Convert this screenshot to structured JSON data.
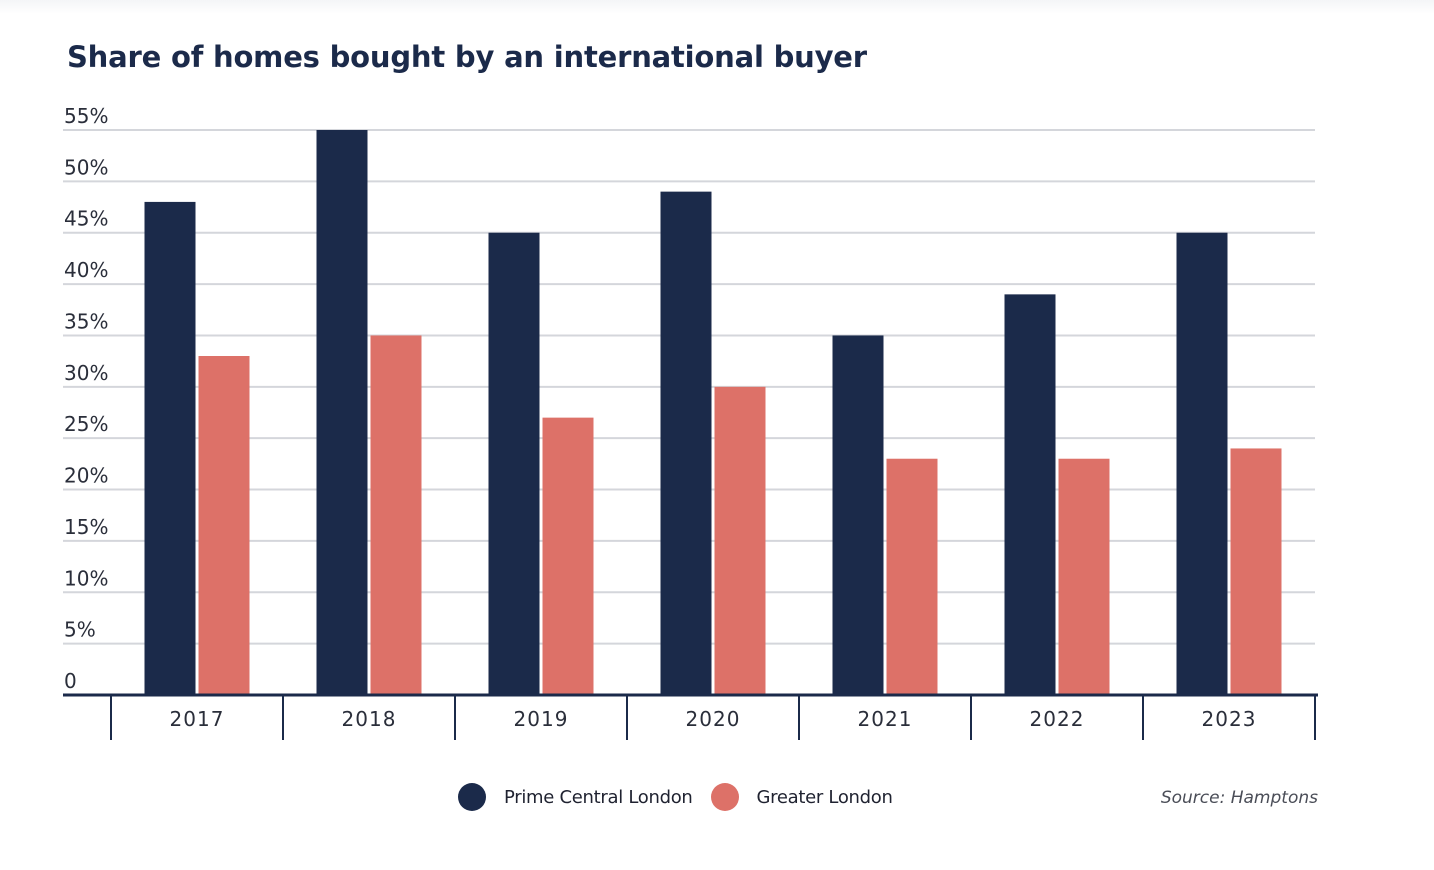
{
  "colors": {
    "prime_central_london": "#1b2a4a",
    "greater_london": "#dd7168",
    "gridline": "#d4d6db",
    "axis": "#1b2a4a"
  },
  "chart_data": {
    "type": "bar",
    "title": "Share of homes bought by an international buyer",
    "xlabel": "",
    "ylabel": "",
    "categories": [
      "2017",
      "2018",
      "2019",
      "2020",
      "2021",
      "2022",
      "2023"
    ],
    "series": [
      {
        "name": "Prime Central London",
        "color": "#1b2a4a",
        "values": [
          48,
          55,
          45,
          49,
          35,
          39,
          45
        ]
      },
      {
        "name": "Greater London",
        "color": "#dd7168",
        "values": [
          33,
          35,
          27,
          30,
          23,
          23,
          24
        ]
      }
    ],
    "ylim": [
      0,
      55
    ],
    "yticks": [
      0,
      5,
      10,
      15,
      20,
      25,
      30,
      35,
      40,
      45,
      50,
      55
    ],
    "ytick_labels": [
      "0",
      "5%",
      "10%",
      "15%",
      "20%",
      "25%",
      "30%",
      "35%",
      "40%",
      "45%",
      "50%",
      "55%"
    ],
    "grid": true,
    "legend_position": "bottom-center",
    "source": "Source: Hamptons"
  },
  "legend": {
    "items": [
      {
        "label": "Prime Central London"
      },
      {
        "label": "Greater London"
      }
    ]
  }
}
